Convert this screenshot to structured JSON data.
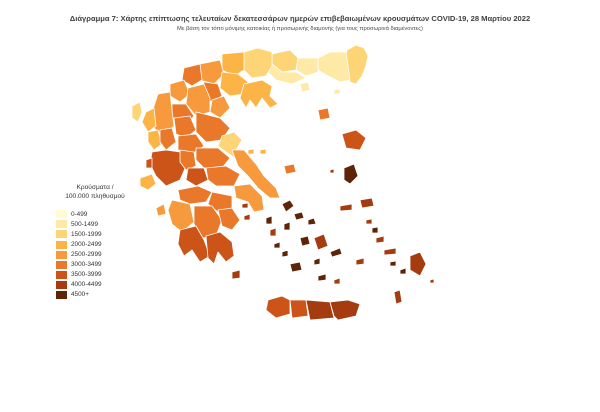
{
  "title": "Διάγραμμα 7: Χάρτης επίπτωσης τελευταίων δεκατεσσάρων ημερών επιβεβαιωμένων κρουσμάτων COVID-19, 28 Μαρτίου 2022",
  "subtitle": "Με βάση τον τόπο μόνιμης κατοικίας ή προσωρινής διαμονής (για τους προσωρινά διαμένοντες)",
  "legend": {
    "title_line1": "Κρούσματα /",
    "title_line2": "100.000 πληθυσμού",
    "items": [
      {
        "label": "0-499",
        "color": "#fffbd6"
      },
      {
        "label": "500-1499",
        "color": "#fee9a6"
      },
      {
        "label": "1500-1999",
        "color": "#fdd576"
      },
      {
        "label": "2000-2499",
        "color": "#fbb445"
      },
      {
        "label": "2500-2999",
        "color": "#f79a3d"
      },
      {
        "label": "3000-3499",
        "color": "#e9782a"
      },
      {
        "label": "3500-3999",
        "color": "#cc5418"
      },
      {
        "label": "4000-4499",
        "color": "#a53c0f"
      },
      {
        "label": "4500+",
        "color": "#5e2408"
      }
    ]
  }
}
